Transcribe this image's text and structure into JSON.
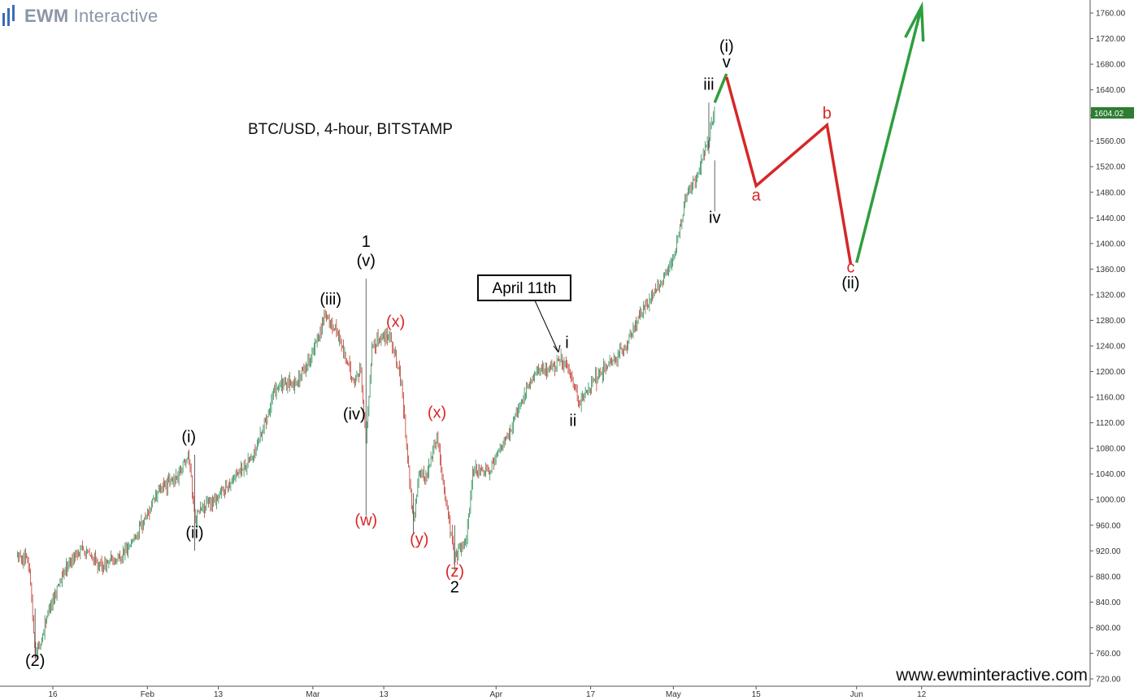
{
  "brand": {
    "logo_bold": "EWM",
    "logo_light": " Interactive"
  },
  "chart_data": {
    "type": "candlestick",
    "title": "BTC/USD, 4-hour, BITSTAMP",
    "watermark": "www.ewminteractive.com",
    "current_price_label": "1604.02",
    "ylim": [
      720,
      1780
    ],
    "y_ticks": [
      720,
      760,
      800,
      840,
      880,
      920,
      960,
      1000,
      1040,
      1080,
      1120,
      1160,
      1200,
      1240,
      1280,
      1320,
      1360,
      1400,
      1440,
      1480,
      1520,
      1560,
      1600,
      1640,
      1680,
      1720,
      1760
    ],
    "x_ticks": [
      "16",
      "Feb",
      "13",
      "Mar",
      "13",
      "Apr",
      "17",
      "May",
      "15",
      "Jun",
      "12"
    ],
    "price_path": [
      [
        "Jan 10",
        910
      ],
      [
        "Jan 12",
        900
      ],
      [
        "Jan 13",
        760
      ],
      [
        "Jan 14",
        775
      ],
      [
        "Jan 15",
        820
      ],
      [
        "Jan 17",
        870
      ],
      [
        "Jan 19",
        905
      ],
      [
        "Jan 21",
        925
      ],
      [
        "Jan 24",
        895
      ],
      [
        "Jan 28",
        915
      ],
      [
        "Jan 31",
        960
      ],
      [
        "Feb 3",
        1015
      ],
      [
        "Feb 6",
        1035
      ],
      [
        "Feb 8",
        1075
      ],
      [
        "Feb 9",
        970
      ],
      [
        "Feb 10",
        985
      ],
      [
        "Feb 13",
        1005
      ],
      [
        "Feb 16",
        1040
      ],
      [
        "Feb 19",
        1070
      ],
      [
        "Feb 23",
        1180
      ],
      [
        "Feb 26",
        1180
      ],
      [
        "Mar 1",
        1230
      ],
      [
        "Mar 3",
        1285
      ],
      [
        "Mar 5",
        1265
      ],
      [
        "Mar 8",
        1180
      ],
      [
        "Mar 9",
        1210
      ],
      [
        "Mar 10",
        1090
      ],
      [
        "Mar 11",
        1240
      ],
      [
        "Mar 12",
        1250
      ],
      [
        "Mar 14",
        1260
      ],
      [
        "Mar 16",
        1180
      ],
      [
        "Mar 18",
        960
      ],
      [
        "Mar 19",
        1050
      ],
      [
        "Mar 20",
        1030
      ],
      [
        "Mar 22",
        1100
      ],
      [
        "Mar 23",
        1030
      ],
      [
        "Mar 25",
        910
      ],
      [
        "Mar 27",
        940
      ],
      [
        "Mar 28",
        1040
      ],
      [
        "Mar 31",
        1050
      ],
      [
        "Apr 3",
        1100
      ],
      [
        "Apr 6",
        1170
      ],
      [
        "Apr 8",
        1200
      ],
      [
        "Apr 11",
        1210
      ],
      [
        "Apr 12",
        1220
      ],
      [
        "Apr 14",
        1185
      ],
      [
        "Apr 15",
        1150
      ],
      [
        "Apr 17",
        1180
      ],
      [
        "Apr 20",
        1210
      ],
      [
        "Apr 23",
        1240
      ],
      [
        "Apr 26",
        1300
      ],
      [
        "Apr 29",
        1340
      ],
      [
        "May 1",
        1370
      ],
      [
        "May 3",
        1470
      ],
      [
        "May 5",
        1510
      ],
      [
        "May 7",
        1560
      ],
      [
        "May 8",
        1604.02
      ]
    ],
    "wave_labels": [
      {
        "text": "(2)",
        "color": "#000000",
        "date": "Jan 13",
        "price": 740
      },
      {
        "text": "(i)",
        "color": "#000000",
        "date": "Feb 8",
        "price": 1090
      },
      {
        "text": "(ii)",
        "color": "#000000",
        "date": "Feb 9",
        "price": 940
      },
      {
        "text": "(iii)",
        "color": "#000000",
        "date": "Mar 4",
        "price": 1305
      },
      {
        "text": "(iv)",
        "color": "#000000",
        "date": "Mar 8",
        "price": 1125
      },
      {
        "text": "1",
        "color": "#000000",
        "date": "Mar 10",
        "price": 1395
      },
      {
        "text": "(v)",
        "color": "#000000",
        "date": "Mar 10",
        "price": 1365
      },
      {
        "text": "(w)",
        "color": "#d62728",
        "date": "Mar 10",
        "price": 960
      },
      {
        "text": "(x)",
        "color": "#d62728",
        "date": "Mar 15",
        "price": 1270
      },
      {
        "text": "(x)",
        "color": "#d62728",
        "date": "Mar 22",
        "price": 1128
      },
      {
        "text": "(y)",
        "color": "#d62728",
        "date": "Mar 19",
        "price": 930
      },
      {
        "text": "(z)",
        "color": "#d62728",
        "date": "Mar 25",
        "price": 880
      },
      {
        "text": "2",
        "color": "#000000",
        "date": "Mar 25",
        "price": 855
      },
      {
        "text": "i",
        "color": "#000000",
        "date": "Apr 13",
        "price": 1237
      },
      {
        "text": "ii",
        "color": "#000000",
        "date": "Apr 14",
        "price": 1115
      },
      {
        "text": "iii",
        "color": "#000000",
        "date": "May 7",
        "price": 1640
      },
      {
        "text": "iv",
        "color": "#000000",
        "date": "May 8",
        "price": 1432
      },
      {
        "text": "(i)",
        "color": "#000000",
        "date": "May 10",
        "price": 1700
      },
      {
        "text": "v",
        "color": "#000000",
        "date": "May 10",
        "price": 1675
      },
      {
        "text": "a",
        "color": "#d62728",
        "date": "May 15",
        "price": 1467
      },
      {
        "text": "b",
        "color": "#d62728",
        "date": "May 27",
        "price": 1595
      },
      {
        "text": "c",
        "color": "#d62728",
        "date": "May 31",
        "price": 1355
      },
      {
        "text": "(ii)",
        "color": "#000000",
        "date": "May 31",
        "price": 1330
      }
    ],
    "callout": {
      "text": "April 11th",
      "date": "Apr 11",
      "price": 1230
    },
    "projection": [
      {
        "color": "#2e9e3e",
        "from": [
          "May 8",
          1620
        ],
        "to": [
          "May 10",
          1665
        ]
      },
      {
        "color": "#d62728",
        "points": [
          [
            "May 10",
            1660
          ],
          [
            "May 15",
            1490
          ],
          [
            "May 27",
            1585
          ],
          [
            "May 31",
            1368
          ]
        ]
      },
      {
        "color": "#2e9e3e",
        "from": [
          "Jun 1",
          1370
        ],
        "to": [
          "Jun 12",
          1770
        ],
        "arrow": true
      }
    ]
  }
}
